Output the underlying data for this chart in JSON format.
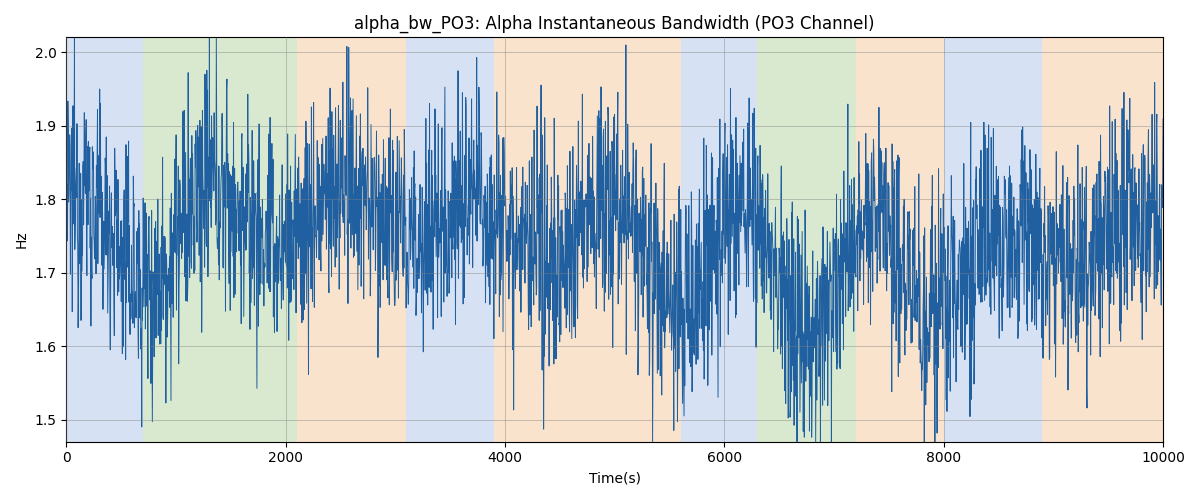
{
  "title": "alpha_bw_PO3: Alpha Instantaneous Bandwidth (PO3 Channel)",
  "xlabel": "Time(s)",
  "ylabel": "Hz",
  "xlim": [
    0,
    10000
  ],
  "ylim": [
    1.47,
    2.02
  ],
  "yticks": [
    1.5,
    1.6,
    1.7,
    1.8,
    1.9,
    2.0
  ],
  "xticks": [
    0,
    2000,
    4000,
    6000,
    8000,
    10000
  ],
  "line_color": "#2060a0",
  "line_width": 0.7,
  "seed": 12345,
  "n_points": 3000,
  "bands": [
    {
      "xmin": 0,
      "xmax": 700,
      "color": "#aec6e8",
      "alpha": 0.5
    },
    {
      "xmin": 700,
      "xmax": 2100,
      "color": "#b5d5a0",
      "alpha": 0.5
    },
    {
      "xmin": 2100,
      "xmax": 3100,
      "color": "#f5c99a",
      "alpha": 0.5
    },
    {
      "xmin": 3100,
      "xmax": 3900,
      "color": "#aec6e8",
      "alpha": 0.5
    },
    {
      "xmin": 3900,
      "xmax": 5600,
      "color": "#f5c99a",
      "alpha": 0.5
    },
    {
      "xmin": 5600,
      "xmax": 6300,
      "color": "#aec6e8",
      "alpha": 0.5
    },
    {
      "xmin": 6300,
      "xmax": 7200,
      "color": "#b5d5a0",
      "alpha": 0.5
    },
    {
      "xmin": 7200,
      "xmax": 8000,
      "color": "#f5c99a",
      "alpha": 0.5
    },
    {
      "xmin": 8000,
      "xmax": 8900,
      "color": "#aec6e8",
      "alpha": 0.5
    },
    {
      "xmin": 8900,
      "xmax": 10000,
      "color": "#f5c99a",
      "alpha": 0.5
    }
  ],
  "figsize": [
    12.0,
    5.0
  ],
  "dpi": 100
}
